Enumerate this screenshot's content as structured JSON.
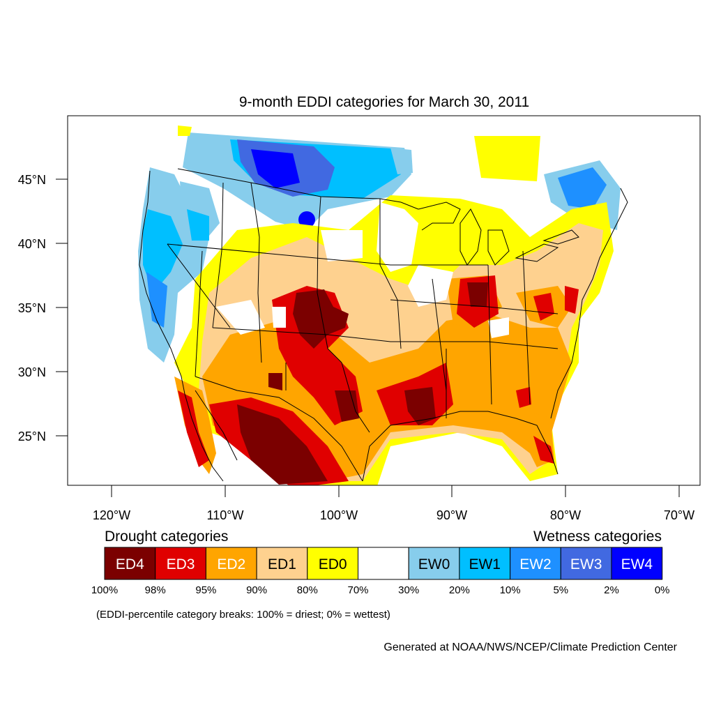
{
  "title": "9-month EDDI categories for March 30, 2011",
  "axes": {
    "lat_labels": [
      "45°N",
      "40°N",
      "35°N",
      "30°N",
      "25°N"
    ],
    "lon_labels": [
      "120°W",
      "110°W",
      "100°W",
      "90°W",
      "80°W",
      "70°W"
    ]
  },
  "legend": {
    "drought_heading": "Drought categories",
    "wetness_heading": "Wetness categories",
    "categories": [
      {
        "label": "ED4",
        "color": "#7b0000",
        "text_color": "#ffffff"
      },
      {
        "label": "ED3",
        "color": "#e00000",
        "text_color": "#ffffff"
      },
      {
        "label": "ED2",
        "color": "#ffa500",
        "text_color": "#ffffff"
      },
      {
        "label": "ED1",
        "color": "#fed18f",
        "text_color": "#000000"
      },
      {
        "label": "ED0",
        "color": "#ffff00",
        "text_color": "#000000"
      },
      {
        "label": "",
        "color": "#ffffff",
        "text_color": "#000000"
      },
      {
        "label": "EW0",
        "color": "#87cdec",
        "text_color": "#000000"
      },
      {
        "label": "EW1",
        "color": "#00bfff",
        "text_color": "#000000"
      },
      {
        "label": "EW2",
        "color": "#1e90ff",
        "text_color": "#ffffff"
      },
      {
        "label": "EW3",
        "color": "#4169e1",
        "text_color": "#ffffff"
      },
      {
        "label": "EW4",
        "color": "#0000ff",
        "text_color": "#ffffff"
      }
    ],
    "breaks": [
      "100%",
      "98%",
      "95%",
      "90%",
      "80%",
      "70%",
      "30%",
      "20%",
      "10%",
      "5%",
      "2%",
      "0%"
    ],
    "note": "(EDDI-percentile category breaks: 100% = driest; 0% = wettest)"
  },
  "credit": "Generated at NOAA/NWS/NCEP/Climate Prediction Center",
  "colors": {
    "ED4": "#7b0000",
    "ED3": "#e00000",
    "ED2": "#ffa500",
    "ED1": "#fed18f",
    "ED0": "#ffff00",
    "EW0": "#87cdec",
    "EW1": "#00bfff",
    "EW2": "#1e90ff",
    "EW3": "#4169e1",
    "EW4": "#0000ff"
  }
}
